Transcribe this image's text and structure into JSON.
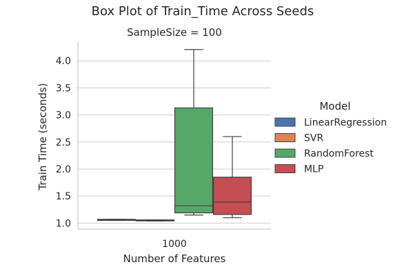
{
  "chart_data": {
    "type": "box",
    "title": "Box Plot of Train_Time Across Seeds",
    "facet_title": "SampleSize = 100",
    "xlabel": "Number of Features",
    "ylabel": "Train Time (seconds)",
    "categories": [
      "1000"
    ],
    "ylim": [
      0.89,
      4.36
    ],
    "yticks": [
      1.0,
      1.5,
      2.0,
      2.5,
      3.0,
      3.5,
      4.0
    ],
    "ytick_labels": [
      "1.0",
      "1.5",
      "2.0",
      "2.5",
      "3.0",
      "3.5",
      "4.0"
    ],
    "grid": "horizontal",
    "legend": {
      "title": "Model",
      "placement": "right"
    },
    "series": [
      {
        "name": "LinearRegression",
        "color": "#4c72b0",
        "box": {
          "whislo": 1.05,
          "q1": 1.05,
          "med": 1.06,
          "q3": 1.07,
          "whishi": 1.07
        }
      },
      {
        "name": "SVR",
        "color": "#dd8452",
        "box": {
          "whislo": 1.04,
          "q1": 1.05,
          "med": 1.05,
          "q3": 1.06,
          "whishi": 1.06
        }
      },
      {
        "name": "RandomForest",
        "color": "#55a868",
        "box": {
          "whislo": 1.15,
          "q1": 1.19,
          "med": 1.32,
          "q3": 3.13,
          "whishi": 4.21
        }
      },
      {
        "name": "MLP",
        "color": "#c44e52",
        "box": {
          "whislo": 1.1,
          "q1": 1.16,
          "med": 1.39,
          "q3": 1.85,
          "whishi": 2.6
        }
      }
    ]
  }
}
